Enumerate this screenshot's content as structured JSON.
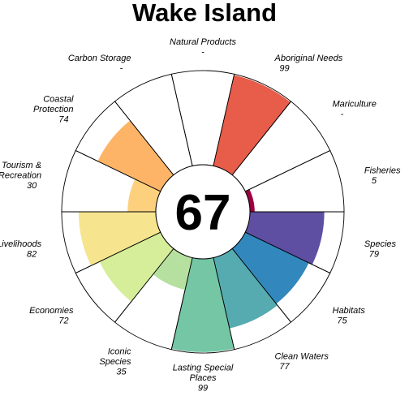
{
  "chart_data": {
    "type": "flower",
    "title": "Wake Island",
    "overall_score": "67",
    "scale_max": 100,
    "petals": [
      {
        "name": "Natural Products",
        "label_lines": [
          "Natural Products"
        ],
        "value": null,
        "value_text": "-",
        "color": "#9E0142"
      },
      {
        "name": "Aboriginal Needs",
        "label_lines": [
          "Aboriginal Needs"
        ],
        "value": 99,
        "value_text": "99",
        "color": "#E85C4A"
      },
      {
        "name": "Mariculture",
        "label_lines": [
          "Mariculture"
        ],
        "value": null,
        "value_text": "-",
        "color": "#FDAE61"
      },
      {
        "name": "Fisheries",
        "label_lines": [
          "Fisheries"
        ],
        "value": 5,
        "value_text": "5",
        "color": "#9E0142"
      },
      {
        "name": "Species",
        "label_lines": [
          "Species"
        ],
        "value": 79,
        "value_text": "79",
        "color": "#5E4FA2"
      },
      {
        "name": "Habitats",
        "label_lines": [
          "Habitats"
        ],
        "value": 75,
        "value_text": "75",
        "color": "#3288BD"
      },
      {
        "name": "Clean Waters",
        "label_lines": [
          "Clean Waters"
        ],
        "value": 77,
        "value_text": "77",
        "color": "#55ABAF"
      },
      {
        "name": "Lasting Special Places",
        "label_lines": [
          "Lasting Special",
          "Places"
        ],
        "value": 99,
        "value_text": "99",
        "color": "#74C6A5"
      },
      {
        "name": "Iconic Species",
        "label_lines": [
          "Iconic",
          "Species"
        ],
        "value": 35,
        "value_text": "35",
        "color": "#B6E0A0"
      },
      {
        "name": "Economies",
        "label_lines": [
          "Economies"
        ],
        "value": 72,
        "value_text": "72",
        "color": "#D6EE9A"
      },
      {
        "name": "Livelihoods",
        "label_lines": [
          "Livelihoods"
        ],
        "value": 82,
        "value_text": "82",
        "color": "#F6E58E"
      },
      {
        "name": "Tourism & Recreation",
        "label_lines": [
          "Tourism &",
          "Recreation"
        ],
        "value": 30,
        "value_text": "30",
        "color": "#FDD07E"
      },
      {
        "name": "Coastal Protection",
        "label_lines": [
          "Coastal",
          "Protection"
        ],
        "value": 74,
        "value_text": "74",
        "color": "#FDB467"
      },
      {
        "name": "Carbon Storage",
        "label_lines": [
          "Carbon Storage"
        ],
        "value": null,
        "value_text": "-",
        "color": "#FDAE61"
      }
    ]
  }
}
